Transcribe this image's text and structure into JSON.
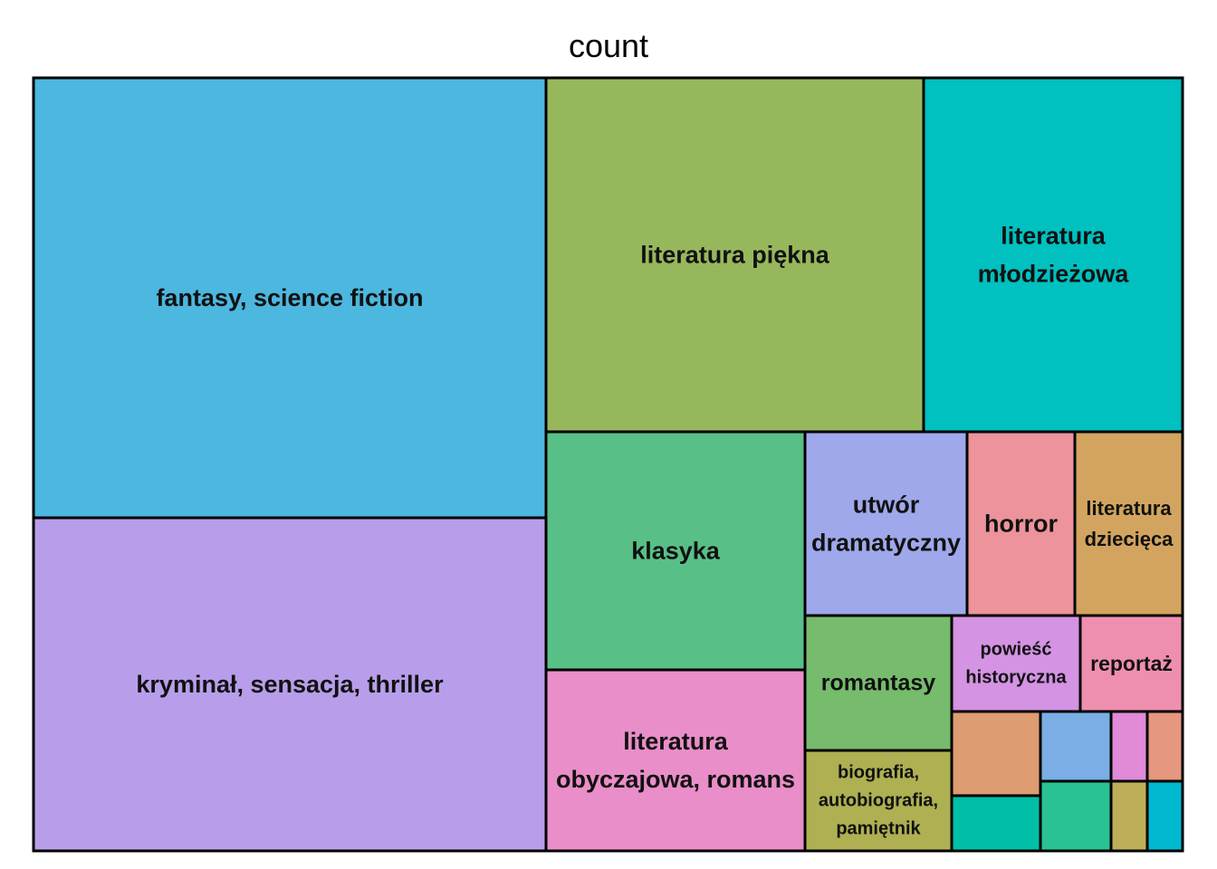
{
  "chart_data": {
    "type": "treemap",
    "title": "count",
    "items": [
      {
        "label": "fantasy, science fiction",
        "lines": [
          "fantasy, science fiction"
        ],
        "value": 27.5,
        "color": "#4cb7df"
      },
      {
        "label": "kryminał, sensacja, thriller",
        "lines": [
          "kryminał, sensacja, thriller"
        ],
        "value": 19.4,
        "color": "#b89eea"
      },
      {
        "label": "literatura piękna",
        "lines": [
          "literatura piękna"
        ],
        "value": 16.3,
        "color": "#97b75d"
      },
      {
        "label": "literatura młodzieżowa",
        "lines": [
          "literatura",
          "młodzieżowa"
        ],
        "value": 11.1,
        "color": "#00c0c0"
      },
      {
        "label": "klasyka",
        "lines": [
          "klasyka"
        ],
        "value": 7.5,
        "color": "#58c087"
      },
      {
        "label": "literatura obyczajowa, romans",
        "lines": [
          "literatura",
          "obyczajowa, romans"
        ],
        "value": 5.7,
        "color": "#e98ec8"
      },
      {
        "label": "utwór dramatyczny",
        "lines": [
          "utwór",
          "dramatyczny"
        ],
        "value": 3.7,
        "color": "#9fa8ea"
      },
      {
        "label": "horror",
        "lines": [
          "horror"
        ],
        "value": 2.5,
        "color": "#ec939c"
      },
      {
        "label": "literatura dziecięca",
        "lines": [
          "literatura",
          "dziecięca"
        ],
        "value": 2.5,
        "color": "#d2a45f"
      },
      {
        "label": "romantasy",
        "lines": [
          "romantasy"
        ],
        "value": 2.2,
        "color": "#77bb6d"
      },
      {
        "label": "biografia, autobiografia, pamiętnik",
        "lines": [
          "biografia,",
          "autobiografia,",
          "pamiętnik"
        ],
        "value": 1.7,
        "color": "#aeb052"
      },
      {
        "label": "powieść historyczna",
        "lines": [
          "powieść",
          "historyczna"
        ],
        "value": 1.3,
        "color": "#d493e3"
      },
      {
        "label": "reportaż",
        "lines": [
          "reportaż"
        ],
        "value": 1.2,
        "color": "#ef8fb0"
      },
      {
        "label": "",
        "lines": [],
        "value": 0.9,
        "color": "#dd9c72"
      },
      {
        "label": "",
        "lines": [],
        "value": 0.6,
        "color": "#00bfa8"
      },
      {
        "label": "",
        "lines": [],
        "value": 0.7,
        "color": "#7aaee5"
      },
      {
        "label": "",
        "lines": [],
        "value": 0.7,
        "color": "#28c294"
      },
      {
        "label": "",
        "lines": [],
        "value": 0.35,
        "color": "#e08ad8"
      },
      {
        "label": "",
        "lines": [],
        "value": 0.35,
        "color": "#bfae58"
      },
      {
        "label": "",
        "lines": [],
        "value": 0.35,
        "color": "#e6977f"
      },
      {
        "label": "",
        "lines": [],
        "value": 0.35,
        "color": "#00b8d0"
      }
    ]
  }
}
